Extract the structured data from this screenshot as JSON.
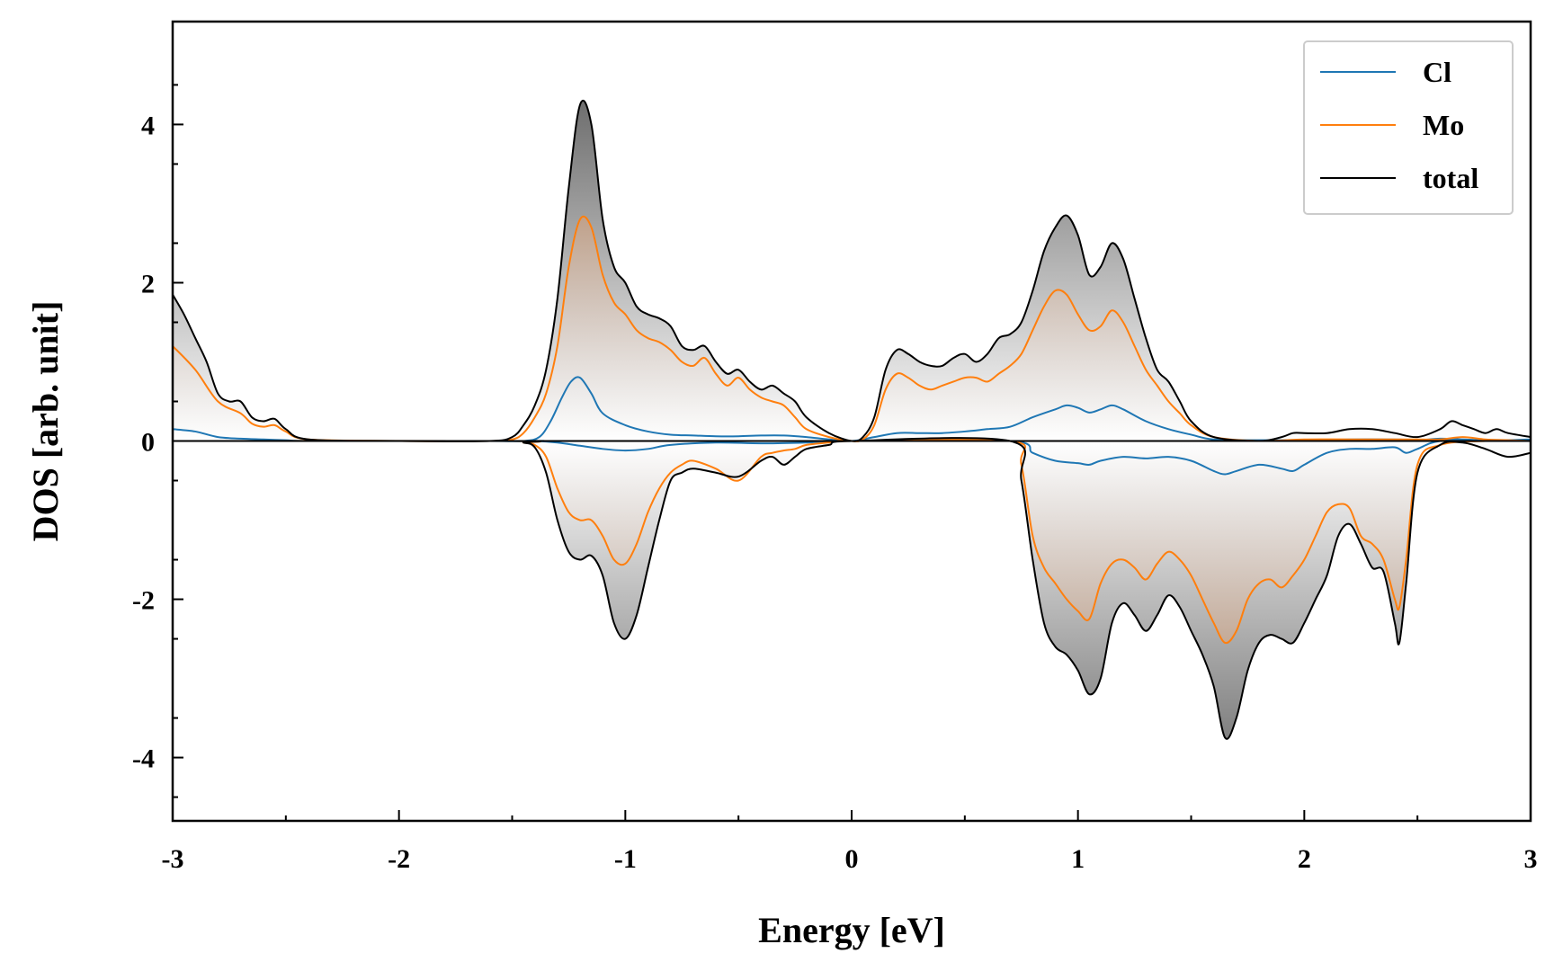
{
  "chart_data": {
    "type": "line",
    "xlabel": "Energy [eV]",
    "ylabel": "DOS [arb. unit]",
    "xlim": [
      -3,
      3
    ],
    "ylim": [
      -4.8,
      5.3
    ],
    "xticks": [
      -3,
      -2,
      -1,
      0,
      1,
      2,
      3
    ],
    "xtick_labels": [
      "-3",
      "-2",
      "-1",
      "0",
      "1",
      "2",
      "3"
    ],
    "yticks": [
      -4,
      -2,
      0,
      2,
      4
    ],
    "ytick_labels": [
      "-4",
      "-2",
      "0",
      "2",
      "4"
    ],
    "grid": false,
    "legend_position": "top-right",
    "colors": {
      "Cl": "#1f77b4",
      "Mo": "#ff7f0e",
      "total": "#000000",
      "total_fill": "#7f7f7f",
      "mo_fill": "#c8865c"
    },
    "series": [
      {
        "name": "Cl",
        "up": {
          "x": [
            -3.0,
            -2.9,
            -2.8,
            -2.7,
            -2.6,
            -2.5,
            -2.4,
            -2.0,
            -1.6,
            -1.45,
            -1.38,
            -1.33,
            -1.28,
            -1.24,
            -1.2,
            -1.15,
            -1.1,
            -1.0,
            -0.9,
            -0.8,
            -0.7,
            -0.6,
            -0.5,
            -0.4,
            -0.3,
            -0.2,
            -0.1,
            0.0,
            0.1,
            0.2,
            0.3,
            0.4,
            0.5,
            0.6,
            0.7,
            0.8,
            0.9,
            0.95,
            1.0,
            1.05,
            1.1,
            1.15,
            1.2,
            1.3,
            1.4,
            1.5,
            1.6,
            1.8,
            2.0,
            2.2,
            2.4,
            2.5,
            2.6,
            2.7,
            2.8,
            2.9,
            3.0
          ],
          "y": [
            0.15,
            0.12,
            0.05,
            0.03,
            0.02,
            0.01,
            0.0,
            0.0,
            0.0,
            0.0,
            0.05,
            0.25,
            0.55,
            0.75,
            0.8,
            0.6,
            0.35,
            0.2,
            0.12,
            0.08,
            0.07,
            0.06,
            0.06,
            0.07,
            0.07,
            0.05,
            0.02,
            0.0,
            0.05,
            0.1,
            0.1,
            0.1,
            0.12,
            0.15,
            0.18,
            0.3,
            0.4,
            0.45,
            0.42,
            0.36,
            0.4,
            0.45,
            0.4,
            0.25,
            0.15,
            0.08,
            0.02,
            0.01,
            0.01,
            0.02,
            0.02,
            0.01,
            0.03,
            0.02,
            0.01,
            0.01,
            0.02
          ]
        },
        "down": {
          "x": [
            -3.0,
            -1.5,
            -1.4,
            -1.3,
            -1.2,
            -1.1,
            -1.0,
            -0.9,
            -0.8,
            -0.6,
            -0.4,
            -0.2,
            0.0,
            0.7,
            0.8,
            0.9,
            1.0,
            1.05,
            1.1,
            1.2,
            1.3,
            1.4,
            1.5,
            1.6,
            1.65,
            1.7,
            1.8,
            1.9,
            1.95,
            2.0,
            2.1,
            2.2,
            2.3,
            2.4,
            2.45,
            2.5,
            2.6,
            2.8,
            3.0
          ],
          "y": [
            0.0,
            0.0,
            0.0,
            -0.02,
            -0.06,
            -0.1,
            -0.12,
            -0.1,
            -0.05,
            -0.02,
            -0.03,
            -0.02,
            0.0,
            0.0,
            -0.15,
            -0.25,
            -0.28,
            -0.3,
            -0.25,
            -0.2,
            -0.22,
            -0.2,
            -0.25,
            -0.38,
            -0.42,
            -0.38,
            -0.3,
            -0.35,
            -0.38,
            -0.3,
            -0.15,
            -0.1,
            -0.1,
            -0.08,
            -0.15,
            -0.1,
            0.0,
            0.0,
            0.0
          ]
        }
      },
      {
        "name": "Mo",
        "up": {
          "x": [
            -3.0,
            -2.9,
            -2.8,
            -2.7,
            -2.65,
            -2.6,
            -2.55,
            -2.5,
            -2.4,
            -2.0,
            -1.6,
            -1.5,
            -1.45,
            -1.4,
            -1.35,
            -1.3,
            -1.25,
            -1.2,
            -1.15,
            -1.1,
            -1.05,
            -1.0,
            -0.95,
            -0.9,
            -0.85,
            -0.8,
            -0.75,
            -0.7,
            -0.65,
            -0.6,
            -0.55,
            -0.5,
            -0.45,
            -0.4,
            -0.35,
            -0.3,
            -0.25,
            -0.2,
            -0.1,
            0.0,
            0.05,
            0.1,
            0.15,
            0.2,
            0.25,
            0.3,
            0.35,
            0.4,
            0.45,
            0.5,
            0.55,
            0.6,
            0.65,
            0.7,
            0.75,
            0.8,
            0.85,
            0.9,
            0.95,
            1.0,
            1.05,
            1.1,
            1.15,
            1.2,
            1.25,
            1.3,
            1.35,
            1.4,
            1.45,
            1.5,
            1.6,
            1.8,
            2.0,
            2.2,
            2.4,
            2.5,
            2.6,
            2.7,
            2.8,
            2.9,
            3.0
          ],
          "y": [
            1.2,
            0.9,
            0.5,
            0.35,
            0.22,
            0.18,
            0.2,
            0.12,
            0.02,
            0.0,
            0.0,
            0.02,
            0.1,
            0.3,
            0.6,
            1.2,
            2.2,
            2.8,
            2.7,
            2.1,
            1.75,
            1.6,
            1.4,
            1.3,
            1.25,
            1.15,
            1.0,
            0.95,
            1.05,
            0.85,
            0.7,
            0.8,
            0.65,
            0.55,
            0.5,
            0.45,
            0.3,
            0.15,
            0.05,
            0.0,
            0.02,
            0.2,
            0.65,
            0.85,
            0.8,
            0.7,
            0.65,
            0.7,
            0.75,
            0.8,
            0.8,
            0.75,
            0.85,
            0.95,
            1.1,
            1.4,
            1.7,
            1.9,
            1.85,
            1.6,
            1.4,
            1.45,
            1.65,
            1.5,
            1.2,
            0.9,
            0.7,
            0.5,
            0.35,
            0.2,
            0.05,
            0.0,
            0.02,
            0.02,
            0.02,
            0.02,
            0.02,
            0.05,
            0.02,
            0.01,
            0.0
          ]
        },
        "down": {
          "x": [
            -3.0,
            -1.5,
            -1.45,
            -1.4,
            -1.35,
            -1.3,
            -1.25,
            -1.2,
            -1.15,
            -1.1,
            -1.05,
            -1.0,
            -0.95,
            -0.9,
            -0.85,
            -0.8,
            -0.75,
            -0.7,
            -0.6,
            -0.5,
            -0.4,
            -0.35,
            -0.3,
            -0.25,
            -0.2,
            -0.1,
            0.0,
            0.7,
            0.75,
            0.8,
            0.85,
            0.9,
            0.95,
            1.0,
            1.05,
            1.1,
            1.15,
            1.2,
            1.25,
            1.3,
            1.35,
            1.4,
            1.45,
            1.5,
            1.55,
            1.6,
            1.65,
            1.7,
            1.75,
            1.8,
            1.85,
            1.9,
            1.95,
            2.0,
            2.05,
            2.1,
            2.15,
            2.2,
            2.25,
            2.3,
            2.35,
            2.4,
            2.42,
            2.45,
            2.5,
            2.6,
            2.8,
            3.0
          ],
          "y": [
            0.0,
            0.0,
            -0.02,
            -0.05,
            -0.2,
            -0.6,
            -0.9,
            -1.0,
            -1.0,
            -1.2,
            -1.5,
            -1.55,
            -1.3,
            -0.9,
            -0.6,
            -0.4,
            -0.3,
            -0.25,
            -0.35,
            -0.5,
            -0.2,
            -0.15,
            -0.12,
            -0.1,
            -0.05,
            -0.02,
            0.0,
            0.0,
            -0.3,
            -1.2,
            -1.6,
            -1.8,
            -2.0,
            -2.15,
            -2.25,
            -1.8,
            -1.55,
            -1.5,
            -1.6,
            -1.75,
            -1.55,
            -1.4,
            -1.5,
            -1.7,
            -2.0,
            -2.3,
            -2.55,
            -2.4,
            -2.0,
            -1.8,
            -1.75,
            -1.85,
            -1.7,
            -1.5,
            -1.2,
            -0.9,
            -0.8,
            -0.85,
            -1.2,
            -1.3,
            -1.5,
            -2.0,
            -2.1,
            -1.5,
            -0.3,
            -0.05,
            0.0,
            0.0
          ]
        }
      },
      {
        "name": "total",
        "up": {
          "x": [
            -3.0,
            -2.95,
            -2.9,
            -2.85,
            -2.8,
            -2.75,
            -2.7,
            -2.65,
            -2.6,
            -2.55,
            -2.5,
            -2.4,
            -2.0,
            -1.6,
            -1.5,
            -1.45,
            -1.4,
            -1.35,
            -1.3,
            -1.25,
            -1.2,
            -1.15,
            -1.1,
            -1.05,
            -1.0,
            -0.95,
            -0.9,
            -0.85,
            -0.8,
            -0.75,
            -0.7,
            -0.65,
            -0.6,
            -0.55,
            -0.5,
            -0.45,
            -0.4,
            -0.35,
            -0.3,
            -0.25,
            -0.2,
            -0.1,
            0.0,
            0.05,
            0.1,
            0.15,
            0.2,
            0.25,
            0.3,
            0.35,
            0.4,
            0.45,
            0.5,
            0.55,
            0.6,
            0.65,
            0.7,
            0.75,
            0.8,
            0.85,
            0.9,
            0.95,
            1.0,
            1.05,
            1.1,
            1.15,
            1.2,
            1.25,
            1.3,
            1.35,
            1.4,
            1.45,
            1.5,
            1.6,
            1.8,
            1.9,
            1.95,
            2.0,
            2.1,
            2.2,
            2.3,
            2.4,
            2.5,
            2.6,
            2.65,
            2.7,
            2.75,
            2.8,
            2.85,
            2.9,
            3.0
          ],
          "y": [
            1.85,
            1.6,
            1.3,
            1.0,
            0.6,
            0.5,
            0.5,
            0.3,
            0.25,
            0.28,
            0.15,
            0.02,
            0.0,
            0.0,
            0.05,
            0.2,
            0.45,
            0.9,
            1.8,
            3.2,
            4.25,
            4.0,
            2.8,
            2.2,
            2.0,
            1.7,
            1.6,
            1.55,
            1.45,
            1.2,
            1.15,
            1.2,
            1.0,
            0.85,
            0.9,
            0.75,
            0.65,
            0.7,
            0.6,
            0.5,
            0.3,
            0.1,
            0.0,
            0.05,
            0.3,
            0.9,
            1.15,
            1.1,
            1.0,
            0.95,
            0.95,
            1.05,
            1.1,
            1.0,
            1.1,
            1.3,
            1.35,
            1.5,
            1.9,
            2.4,
            2.7,
            2.85,
            2.6,
            2.1,
            2.2,
            2.5,
            2.3,
            1.8,
            1.3,
            0.9,
            0.75,
            0.5,
            0.25,
            0.05,
            0.0,
            0.05,
            0.1,
            0.1,
            0.1,
            0.15,
            0.15,
            0.1,
            0.05,
            0.15,
            0.25,
            0.2,
            0.15,
            0.1,
            0.15,
            0.1,
            0.05
          ]
        },
        "down": {
          "x": [
            -3.0,
            -1.5,
            -1.45,
            -1.4,
            -1.35,
            -1.3,
            -1.25,
            -1.2,
            -1.15,
            -1.1,
            -1.05,
            -1.0,
            -0.95,
            -0.9,
            -0.85,
            -0.8,
            -0.75,
            -0.7,
            -0.6,
            -0.5,
            -0.4,
            -0.35,
            -0.3,
            -0.25,
            -0.2,
            -0.1,
            0.0,
            0.7,
            0.75,
            0.8,
            0.85,
            0.9,
            0.95,
            1.0,
            1.05,
            1.1,
            1.15,
            1.2,
            1.25,
            1.3,
            1.35,
            1.4,
            1.45,
            1.5,
            1.55,
            1.6,
            1.65,
            1.7,
            1.75,
            1.8,
            1.85,
            1.9,
            1.95,
            2.0,
            2.05,
            2.1,
            2.15,
            2.2,
            2.25,
            2.3,
            2.35,
            2.4,
            2.42,
            2.45,
            2.5,
            2.6,
            2.7,
            2.8,
            2.9,
            3.0
          ],
          "y": [
            0.0,
            0.0,
            -0.02,
            -0.08,
            -0.4,
            -1.0,
            -1.4,
            -1.5,
            -1.45,
            -1.7,
            -2.3,
            -2.5,
            -2.2,
            -1.6,
            -1.0,
            -0.5,
            -0.4,
            -0.35,
            -0.4,
            -0.45,
            -0.25,
            -0.2,
            -0.3,
            -0.2,
            -0.1,
            -0.05,
            0.0,
            0.0,
            -0.5,
            -1.5,
            -2.3,
            -2.6,
            -2.7,
            -2.9,
            -3.2,
            -3.0,
            -2.3,
            -2.05,
            -2.2,
            -2.4,
            -2.2,
            -1.95,
            -2.1,
            -2.4,
            -2.7,
            -3.1,
            -3.75,
            -3.5,
            -2.9,
            -2.55,
            -2.45,
            -2.5,
            -2.55,
            -2.3,
            -2.0,
            -1.7,
            -1.2,
            -1.05,
            -1.3,
            -1.6,
            -1.65,
            -2.3,
            -2.55,
            -1.8,
            -0.4,
            -0.05,
            -0.02,
            -0.1,
            -0.2,
            -0.15
          ]
        }
      }
    ]
  }
}
